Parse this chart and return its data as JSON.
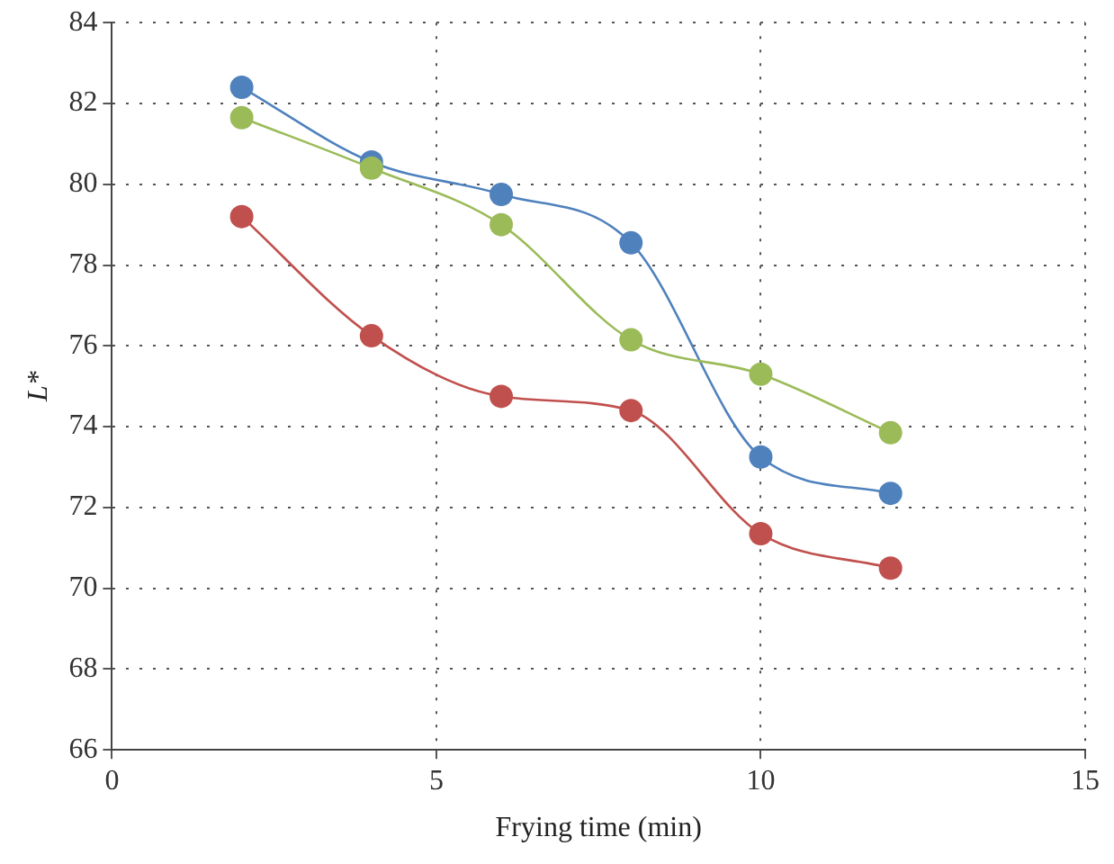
{
  "chart_data": {
    "type": "line",
    "xlabel": "Frying time (min)",
    "ylabel": "L*",
    "x": [
      2,
      4,
      6,
      8,
      10,
      12
    ],
    "series": [
      {
        "color": "#9bbb59",
        "values": [
          81.65,
          80.4,
          79.0,
          76.15,
          75.3,
          73.85
        ]
      },
      {
        "color": "#4f81bd",
        "values": [
          82.4,
          80.55,
          79.75,
          78.55,
          73.25,
          72.35
        ]
      },
      {
        "color": "#c0504d",
        "values": [
          79.2,
          76.25,
          74.75,
          74.4,
          71.35,
          70.5
        ]
      }
    ],
    "xlim": [
      0,
      15
    ],
    "xticks": [
      0,
      5,
      10,
      15
    ],
    "ylim": [
      66,
      84
    ],
    "yticks": [
      66,
      68,
      70,
      72,
      74,
      76,
      78,
      80,
      82,
      84
    ],
    "grid": true,
    "marker": "circle",
    "line_style": "solid",
    "legend": false
  }
}
